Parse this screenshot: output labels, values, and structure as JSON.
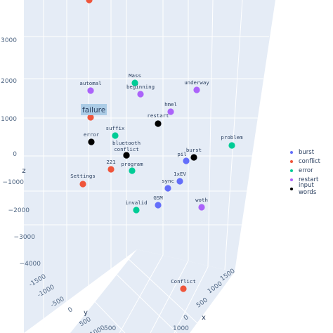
{
  "chart_data": {
    "type": "scatter3d",
    "axes": {
      "x": {
        "label": "x",
        "ticks": [
          "1500",
          "1000",
          "500",
          "0"
        ]
      },
      "y": {
        "label": "y",
        "ticks": [
          "-1500",
          "-1000",
          "-500",
          "0",
          "500",
          "1000"
        ]
      },
      "z": {
        "label": "z",
        "ticks": [
          "3000",
          "2000",
          "1000",
          "0",
          "−1000",
          "−2000",
          "−3000",
          "−4000"
        ]
      }
    },
    "series": [
      {
        "name": "burst",
        "color": "#636efa"
      },
      {
        "name": "conflict",
        "color": "#ef553b"
      },
      {
        "name": "error",
        "color": "#00cc96"
      },
      {
        "name": "restart",
        "color": "#ab63fa"
      },
      {
        "name": "input words",
        "color": "#000000"
      }
    ],
    "points": [
      {
        "label": "",
        "series": "conflict"
      },
      {
        "label": "Mass",
        "series": "error"
      },
      {
        "label": "automal",
        "series": "restart"
      },
      {
        "label": "beginning",
        "series": "restart"
      },
      {
        "label": "underway",
        "series": "restart"
      },
      {
        "label": "hmel",
        "series": "restart"
      },
      {
        "label": "restart",
        "series": "input words"
      },
      {
        "label": "",
        "series": "conflict"
      },
      {
        "label": "suffix",
        "series": "error"
      },
      {
        "label": "error",
        "series": "input words"
      },
      {
        "label": "bluetooth",
        "series": "input words"
      },
      {
        "label": "conflict",
        "series": "input words"
      },
      {
        "label": "problem",
        "series": "error"
      },
      {
        "label": "burst",
        "series": "input words"
      },
      {
        "label": "pil",
        "series": "burst"
      },
      {
        "label": "221",
        "series": "conflict"
      },
      {
        "label": "program",
        "series": "error"
      },
      {
        "label": "1xEV",
        "series": "burst"
      },
      {
        "label": "Settings",
        "series": "conflict"
      },
      {
        "label": "sync",
        "series": "burst"
      },
      {
        "label": "GSM",
        "series": "burst"
      },
      {
        "label": "woth",
        "series": "restart"
      },
      {
        "label": "invalid",
        "series": "error"
      },
      {
        "label": "Conflict",
        "series": "conflict"
      }
    ],
    "hover_label": "failure"
  }
}
